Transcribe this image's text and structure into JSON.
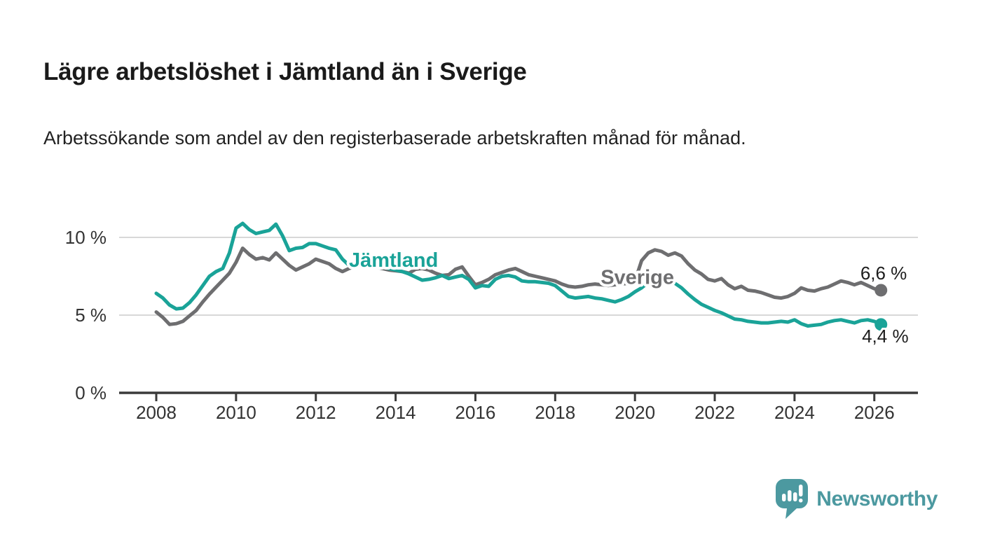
{
  "header": {
    "title": "Lägre arbetslöshet i Jämtland än i Sverige",
    "subtitle": "Arbetssökande som andel av den registerbaserade arbetskraften månad för månad."
  },
  "footer": {
    "brand": "Newsworthy",
    "brand_color": "#4c99a0",
    "logo_icon": "bar-chart-speech-bubble-icon"
  },
  "chart_data": {
    "type": "line",
    "title": "Lägre arbetslöshet i Jämtland än i Sverige",
    "subtitle": "Arbetssökande som andel av den registerbaserade arbetskraften månad för månad.",
    "unit": "%",
    "x_start": 2008.0,
    "x_step": 0.166667,
    "x_ticks": [
      2008,
      2010,
      2012,
      2014,
      2016,
      2018,
      2020,
      2022,
      2024,
      2026
    ],
    "xlim": [
      2007.1,
      2027.0
    ],
    "ylim": [
      0,
      11.8
    ],
    "y_ticks": [
      0,
      5,
      10
    ],
    "y_tick_labels": [
      "0 %",
      "5 %",
      "10 %"
    ],
    "grid": "horizontal",
    "legend": "inline-labels",
    "colors": {
      "axis": "#3a3a3a",
      "grid": "#d8d8d8",
      "tick_text": "#333333",
      "end_label_text": "#1d1d1d"
    },
    "series": [
      {
        "name": "Sverige",
        "color": "#6e6e70",
        "end_label": "6,6 %",
        "end_label_pos": {
          "x": 2025.65,
          "y": 7.3
        },
        "name_label_pos": {
          "x": 2019.14,
          "y": 7.0
        },
        "values": [
          5.2,
          4.85,
          4.4,
          4.45,
          4.6,
          4.95,
          5.3,
          5.85,
          6.35,
          6.8,
          7.25,
          7.7,
          8.4,
          9.3,
          8.9,
          8.6,
          8.7,
          8.55,
          9.0,
          8.6,
          8.2,
          7.9,
          8.1,
          8.3,
          8.6,
          8.45,
          8.3,
          8.0,
          7.8,
          8.0,
          8.15,
          8.3,
          8.2,
          8.1,
          8.0,
          7.9,
          7.85,
          7.8,
          7.7,
          7.95,
          8.0,
          7.9,
          7.7,
          7.55,
          7.6,
          7.95,
          8.1,
          7.5,
          6.95,
          7.1,
          7.3,
          7.6,
          7.75,
          7.9,
          8.0,
          7.8,
          7.6,
          7.5,
          7.4,
          7.3,
          7.2,
          7.0,
          6.85,
          6.8,
          6.85,
          6.95,
          7.0,
          6.95,
          6.9,
          6.95,
          7.0,
          7.05,
          7.2,
          8.5,
          9.0,
          9.2,
          9.1,
          8.85,
          9.0,
          8.8,
          8.3,
          7.9,
          7.65,
          7.3,
          7.2,
          7.35,
          6.95,
          6.7,
          6.85,
          6.6,
          6.55,
          6.45,
          6.3,
          6.15,
          6.1,
          6.2,
          6.4,
          6.75,
          6.6,
          6.55,
          6.7,
          6.8,
          7.0,
          7.2,
          7.1,
          6.95,
          7.1,
          6.9,
          6.7,
          6.6
        ]
      },
      {
        "name": "Jämtland",
        "color": "#1aa398",
        "end_label": "4,4 %",
        "end_label_pos": {
          "x": 2025.69,
          "y": 3.24
        },
        "name_label_pos": {
          "x": 2012.83,
          "y": 8.1
        },
        "values": [
          6.4,
          6.1,
          5.65,
          5.4,
          5.45,
          5.8,
          6.3,
          6.9,
          7.5,
          7.8,
          8.0,
          9.0,
          10.6,
          10.9,
          10.5,
          10.25,
          10.35,
          10.45,
          10.85,
          10.1,
          9.15,
          9.3,
          9.35,
          9.6,
          9.6,
          9.45,
          9.3,
          9.2,
          8.6,
          8.2,
          8.3,
          8.45,
          8.3,
          8.2,
          8.1,
          8.0,
          7.9,
          7.8,
          7.65,
          7.45,
          7.25,
          7.3,
          7.4,
          7.55,
          7.35,
          7.45,
          7.55,
          7.3,
          6.75,
          6.9,
          6.85,
          7.3,
          7.5,
          7.55,
          7.45,
          7.2,
          7.15,
          7.15,
          7.1,
          7.05,
          6.9,
          6.55,
          6.2,
          6.1,
          6.15,
          6.2,
          6.1,
          6.05,
          5.95,
          5.85,
          6.0,
          6.2,
          6.5,
          6.75,
          7.1,
          7.3,
          7.25,
          7.15,
          7.05,
          6.75,
          6.35,
          6.0,
          5.7,
          5.5,
          5.3,
          5.15,
          4.95,
          4.75,
          4.7,
          4.6,
          4.55,
          4.5,
          4.5,
          4.55,
          4.6,
          4.55,
          4.7,
          4.45,
          4.3,
          4.35,
          4.4,
          4.55,
          4.65,
          4.7,
          4.6,
          4.5,
          4.65,
          4.7,
          4.6,
          4.4
        ]
      }
    ]
  }
}
